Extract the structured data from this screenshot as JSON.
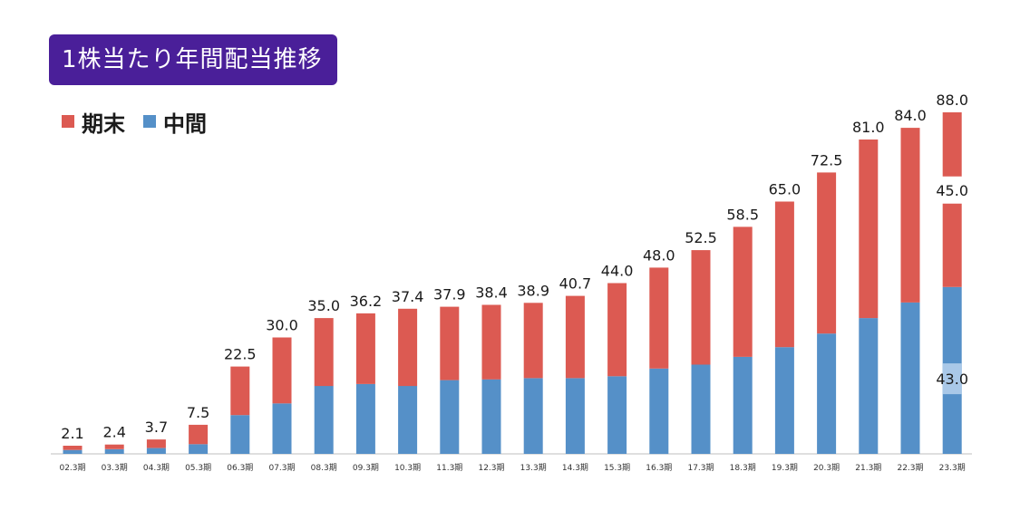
{
  "title": "1株当たり年間配当推移",
  "legend": {
    "items": [
      {
        "key": "period_end",
        "label": "期末",
        "color": "#dc5a52"
      },
      {
        "key": "interim",
        "label": "中間",
        "color": "#5590c8"
      }
    ]
  },
  "chart_data": {
    "type": "bar",
    "stacked": true,
    "title": "1株当たり年間配当推移",
    "xlabel": "",
    "ylabel": "",
    "categories": [
      "02.3期",
      "03.3期",
      "04.3期",
      "05.3期",
      "06.3期",
      "07.3期",
      "08.3期",
      "09.3期",
      "10.3期",
      "11.3期",
      "12.3期",
      "13.3期",
      "14.3期",
      "15.3期",
      "16.3期",
      "17.3期",
      "18.3期",
      "19.3期",
      "20.3期",
      "21.3期",
      "22.3期",
      "23.3期"
    ],
    "series": [
      {
        "name": "中間",
        "color": "#5590c8",
        "values": [
          1.0,
          1.2,
          1.5,
          2.5,
          10.0,
          13.0,
          17.5,
          18.0,
          17.5,
          19.0,
          19.2,
          19.5,
          19.5,
          20.0,
          22.0,
          23.0,
          25.0,
          27.5,
          31.0,
          35.0,
          39.0,
          43.0
        ]
      },
      {
        "name": "期末",
        "color": "#dc5a52",
        "values": [
          1.1,
          1.2,
          2.2,
          5.0,
          12.5,
          17.0,
          17.5,
          18.2,
          19.9,
          18.9,
          19.2,
          19.4,
          21.2,
          24.0,
          26.0,
          29.5,
          33.5,
          37.5,
          41.5,
          46.0,
          45.0,
          45.0
        ]
      }
    ],
    "totals": [
      "2.1",
      "2.4",
      "3.7",
      "7.5",
      "22.5",
      "30.0",
      "35.0",
      "36.2",
      "37.4",
      "37.9",
      "38.4",
      "38.9",
      "40.7",
      "44.0",
      "48.0",
      "52.5",
      "58.5",
      "65.0",
      "72.5",
      "81.0",
      "84.0",
      "88.0"
    ],
    "last_bar_breakdown": {
      "interim": "43.0",
      "period_end": "45.0"
    },
    "ylim": [
      0,
      88
    ],
    "grid": false,
    "legend_position": "top-left"
  }
}
